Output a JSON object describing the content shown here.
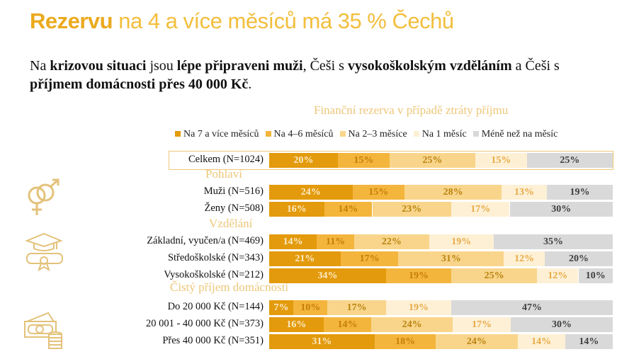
{
  "title": {
    "bold": "Rezervu",
    "rest": " na 4 a více měsíců má 35 % Čechů"
  },
  "subtitle": {
    "parts": [
      [
        "Na ",
        false
      ],
      [
        "krizovou situaci",
        true
      ],
      [
        " jsou ",
        false
      ],
      [
        "lépe připraveni muži",
        true
      ],
      [
        ", Češi s ",
        false
      ],
      [
        "vysokoškolským vzděláním",
        true
      ],
      [
        " a Češi s ",
        false
      ],
      [
        "příjmem domácnosti přes 40 000 Kč",
        true
      ],
      [
        ".",
        false
      ]
    ]
  },
  "chart_data": {
    "type": "bar",
    "orientation": "horizontal-stacked-100",
    "title": "Finanční rezerva v případě ztráty příjmu",
    "legend_position": "top",
    "series": [
      {
        "name": "Na 7 a více měsíců",
        "color": "#E39A0C",
        "label_color": "#FCEBC6"
      },
      {
        "name": "Na 4–6 měsíců",
        "color": "#F4B53D",
        "label_color": "#C57D05"
      },
      {
        "name": "Na 2–3 měsíce",
        "color": "#F9D58B",
        "label_color": "#B9830F"
      },
      {
        "name": "Na 1 měsíc",
        "color": "#FDF0D5",
        "label_color": "#E8AA45"
      },
      {
        "name": "Méně než na měsíc",
        "color": "#D9D9D9",
        "label_color": "#3F3F3F"
      }
    ],
    "groups": [
      {
        "heading": null,
        "rows": [
          {
            "label": "Celkem (N=1024)",
            "values": [
              20,
              15,
              25,
              15,
              25
            ]
          }
        ]
      },
      {
        "heading": "Pohlaví",
        "icon": "gender-icon",
        "rows": [
          {
            "label": "Muži (N=516)",
            "values": [
              24,
              15,
              28,
              13,
              19
            ]
          },
          {
            "label": "Ženy (N=508)",
            "values": [
              16,
              14,
              23,
              17,
              30
            ]
          }
        ]
      },
      {
        "heading": "Vzdělání",
        "icon": "graduation-icon",
        "rows": [
          {
            "label": "Základní, vyučen/a (N=469)",
            "values": [
              14,
              11,
              22,
              19,
              35
            ]
          },
          {
            "label": "Středoškolské (N=343)",
            "values": [
              21,
              17,
              31,
              12,
              20
            ]
          },
          {
            "label": "Vysokoškolské (N=212)",
            "values": [
              34,
              19,
              25,
              12,
              10
            ]
          }
        ]
      },
      {
        "heading": "Čistý příjem domácnosti",
        "icon": "money-icon",
        "rows": [
          {
            "label": "Do 20 000 Kč (N=144)",
            "values": [
              7,
              10,
              17,
              19,
              47
            ]
          },
          {
            "label": "20 001 - 40 000 Kč (N=373)",
            "values": [
              16,
              14,
              24,
              17,
              30
            ]
          },
          {
            "label": "Přes 40 000 Kč (N=351)",
            "values": [
              31,
              18,
              24,
              14,
              14
            ]
          }
        ]
      }
    ]
  }
}
